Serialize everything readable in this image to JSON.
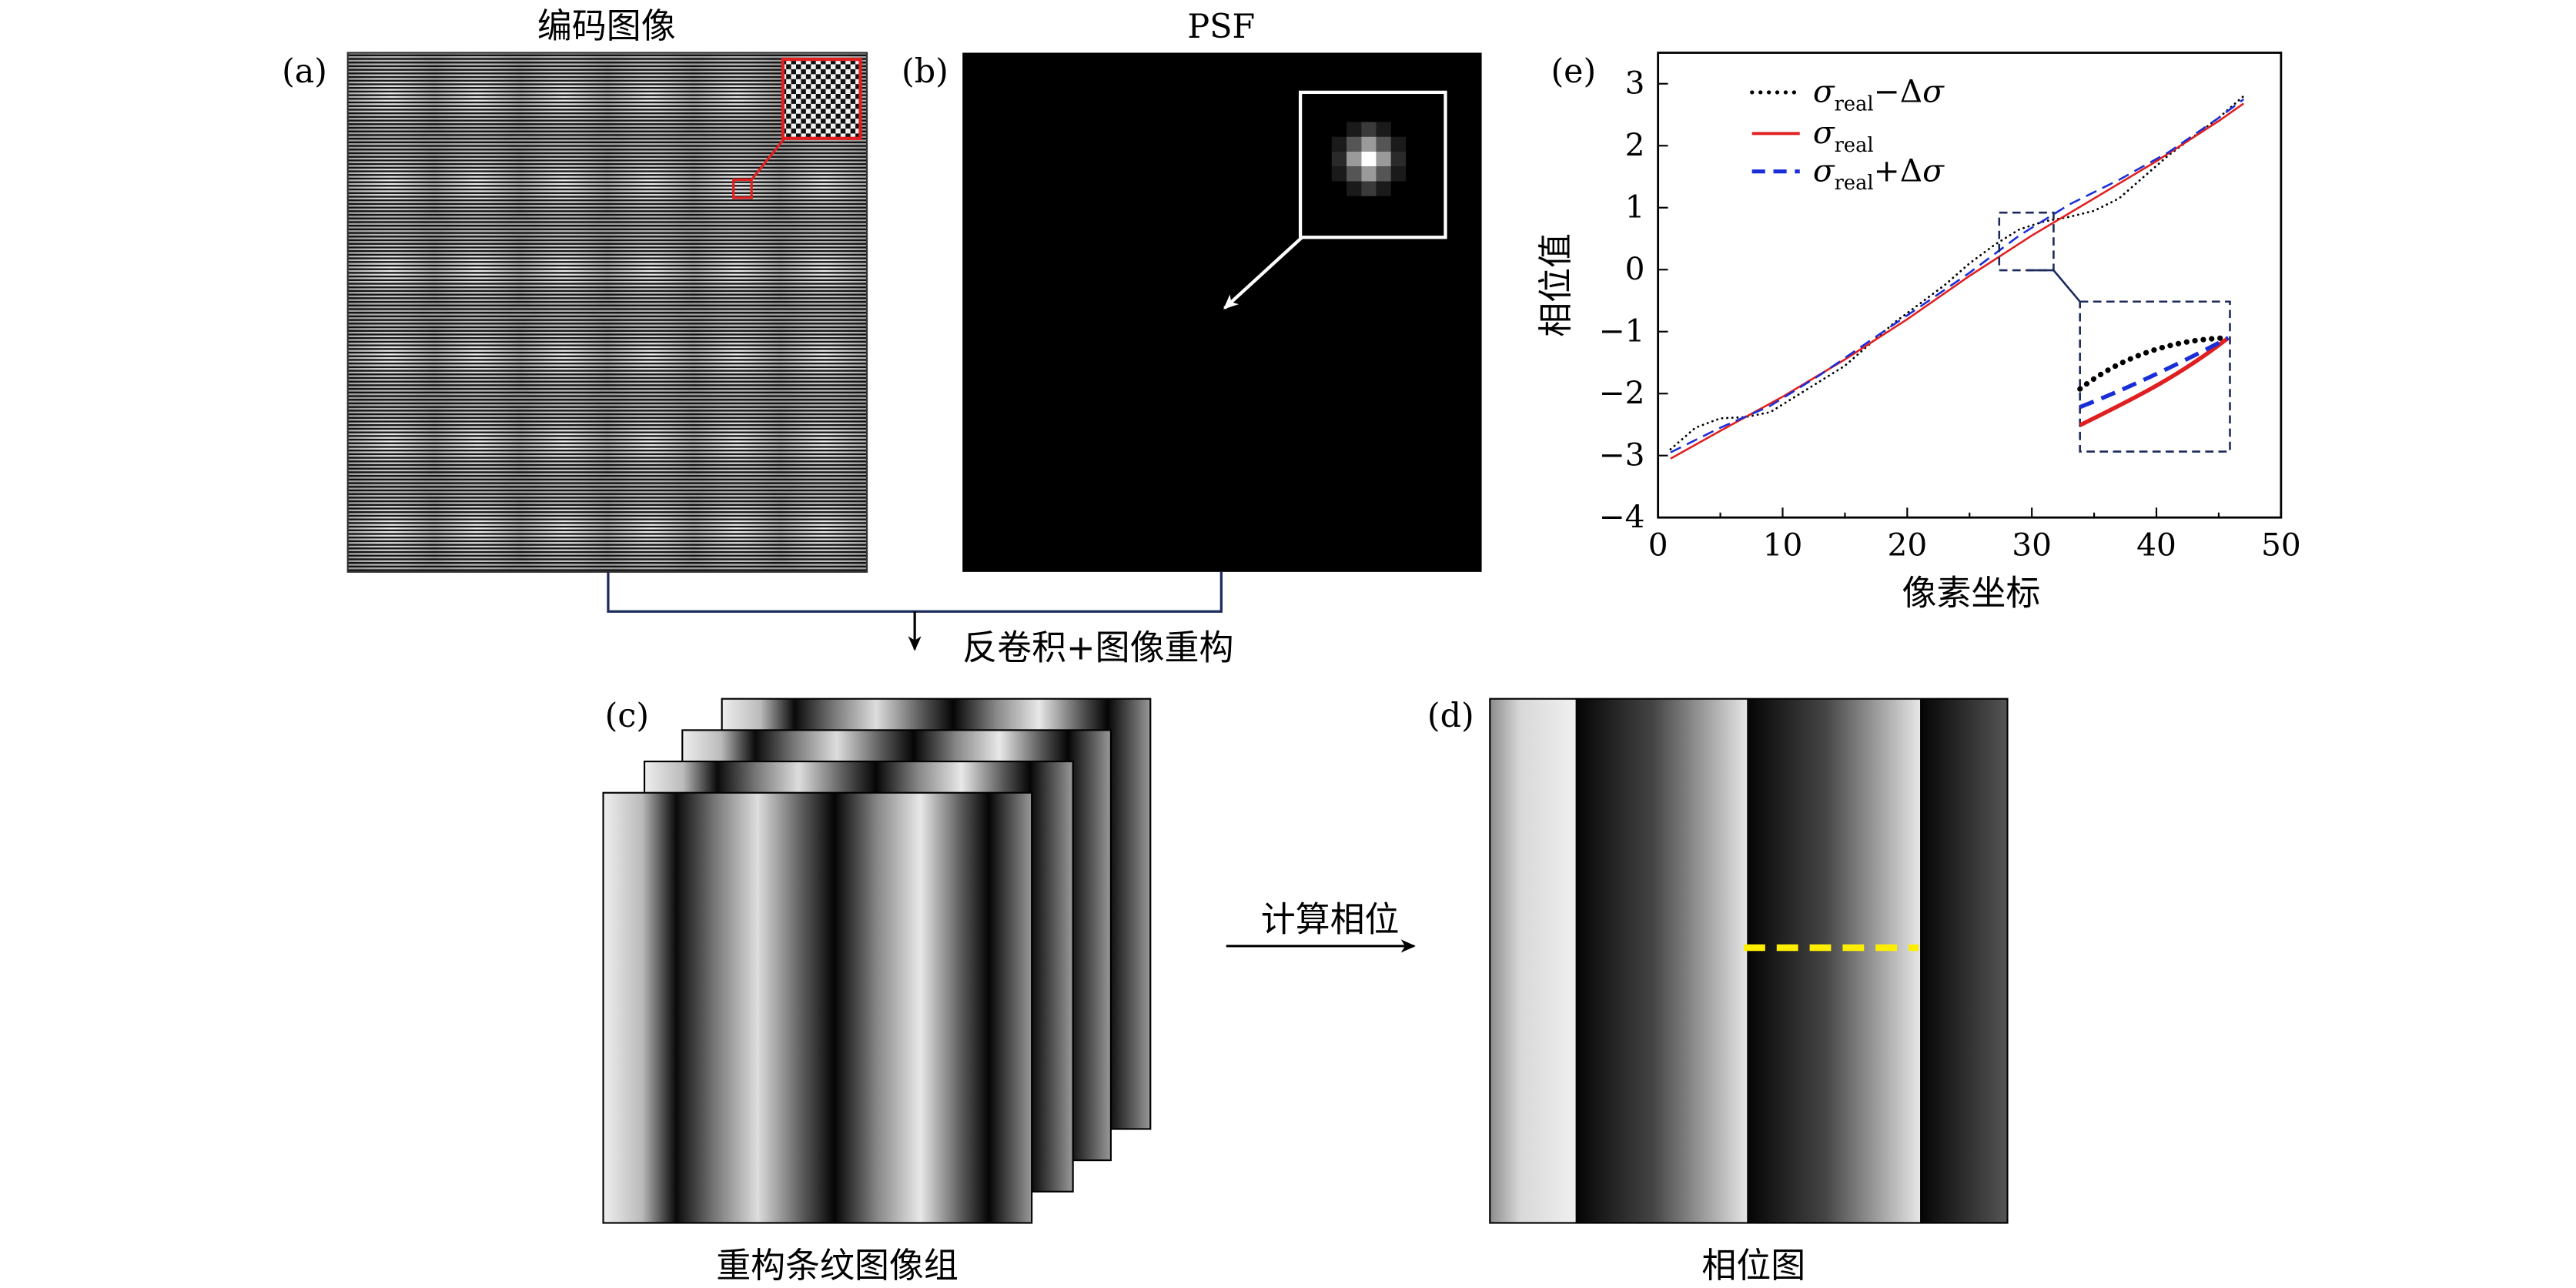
{
  "panels": {
    "a": {
      "label": "(a)",
      "title": "编码图像"
    },
    "b": {
      "label": "(b)",
      "title": "PSF"
    },
    "c": {
      "label": "(c)",
      "caption": "重构条纹图像组"
    },
    "d": {
      "label": "(d)",
      "caption": "相位图"
    },
    "e": {
      "label": "(e)"
    }
  },
  "flow": {
    "reconstruct": "反卷积+图像重构",
    "compute_phase": "计算相位"
  },
  "chart_data": {
    "type": "line",
    "title": "",
    "xlabel": "像素坐标",
    "ylabel": "相位值",
    "xlim": [
      0,
      50
    ],
    "ylim": [
      -4,
      3.5
    ],
    "xticks": [
      0,
      10,
      20,
      30,
      40,
      50
    ],
    "yticks": [
      -4,
      -3,
      -2,
      -1,
      0,
      1,
      2,
      3
    ],
    "legend_position": "top-left",
    "series": [
      {
        "name": "σreal−Δσ",
        "style": "dotted",
        "color": "#000000",
        "x": [
          1,
          3,
          5,
          7,
          9,
          11,
          13,
          15,
          17,
          19,
          21,
          23,
          25,
          27,
          29,
          31,
          33,
          35,
          37,
          39,
          41,
          43,
          45,
          47
        ],
        "y": [
          -2.9,
          -2.55,
          -2.4,
          -2.38,
          -2.3,
          -2.05,
          -1.8,
          -1.55,
          -1.2,
          -0.85,
          -0.55,
          -0.25,
          0.1,
          0.4,
          0.65,
          0.78,
          0.85,
          0.95,
          1.15,
          1.5,
          1.85,
          2.15,
          2.45,
          2.8
        ]
      },
      {
        "name": "σreal",
        "style": "solid",
        "color": "#e02020",
        "x": [
          1,
          5,
          10,
          15,
          20,
          25,
          30,
          35,
          40,
          45,
          47
        ],
        "y": [
          -3.05,
          -2.6,
          -2.05,
          -1.45,
          -0.8,
          -0.1,
          0.55,
          1.15,
          1.75,
          2.4,
          2.68
        ]
      },
      {
        "name": "σreal+Δσ",
        "style": "dashed",
        "color": "#1a2ed8",
        "x": [
          1,
          5,
          9,
          13,
          17,
          21,
          25,
          29,
          33,
          37,
          41,
          45,
          47
        ],
        "y": [
          -2.95,
          -2.55,
          -2.2,
          -1.7,
          -1.15,
          -0.6,
          -0.05,
          0.55,
          1.05,
          1.45,
          1.9,
          2.45,
          2.75
        ]
      }
    ]
  },
  "colors": {
    "zoom_box": "#e02020",
    "flow_line": "#1c2a5c",
    "inset_box": "#1c2a5c",
    "phase_line": "#ffee00"
  }
}
